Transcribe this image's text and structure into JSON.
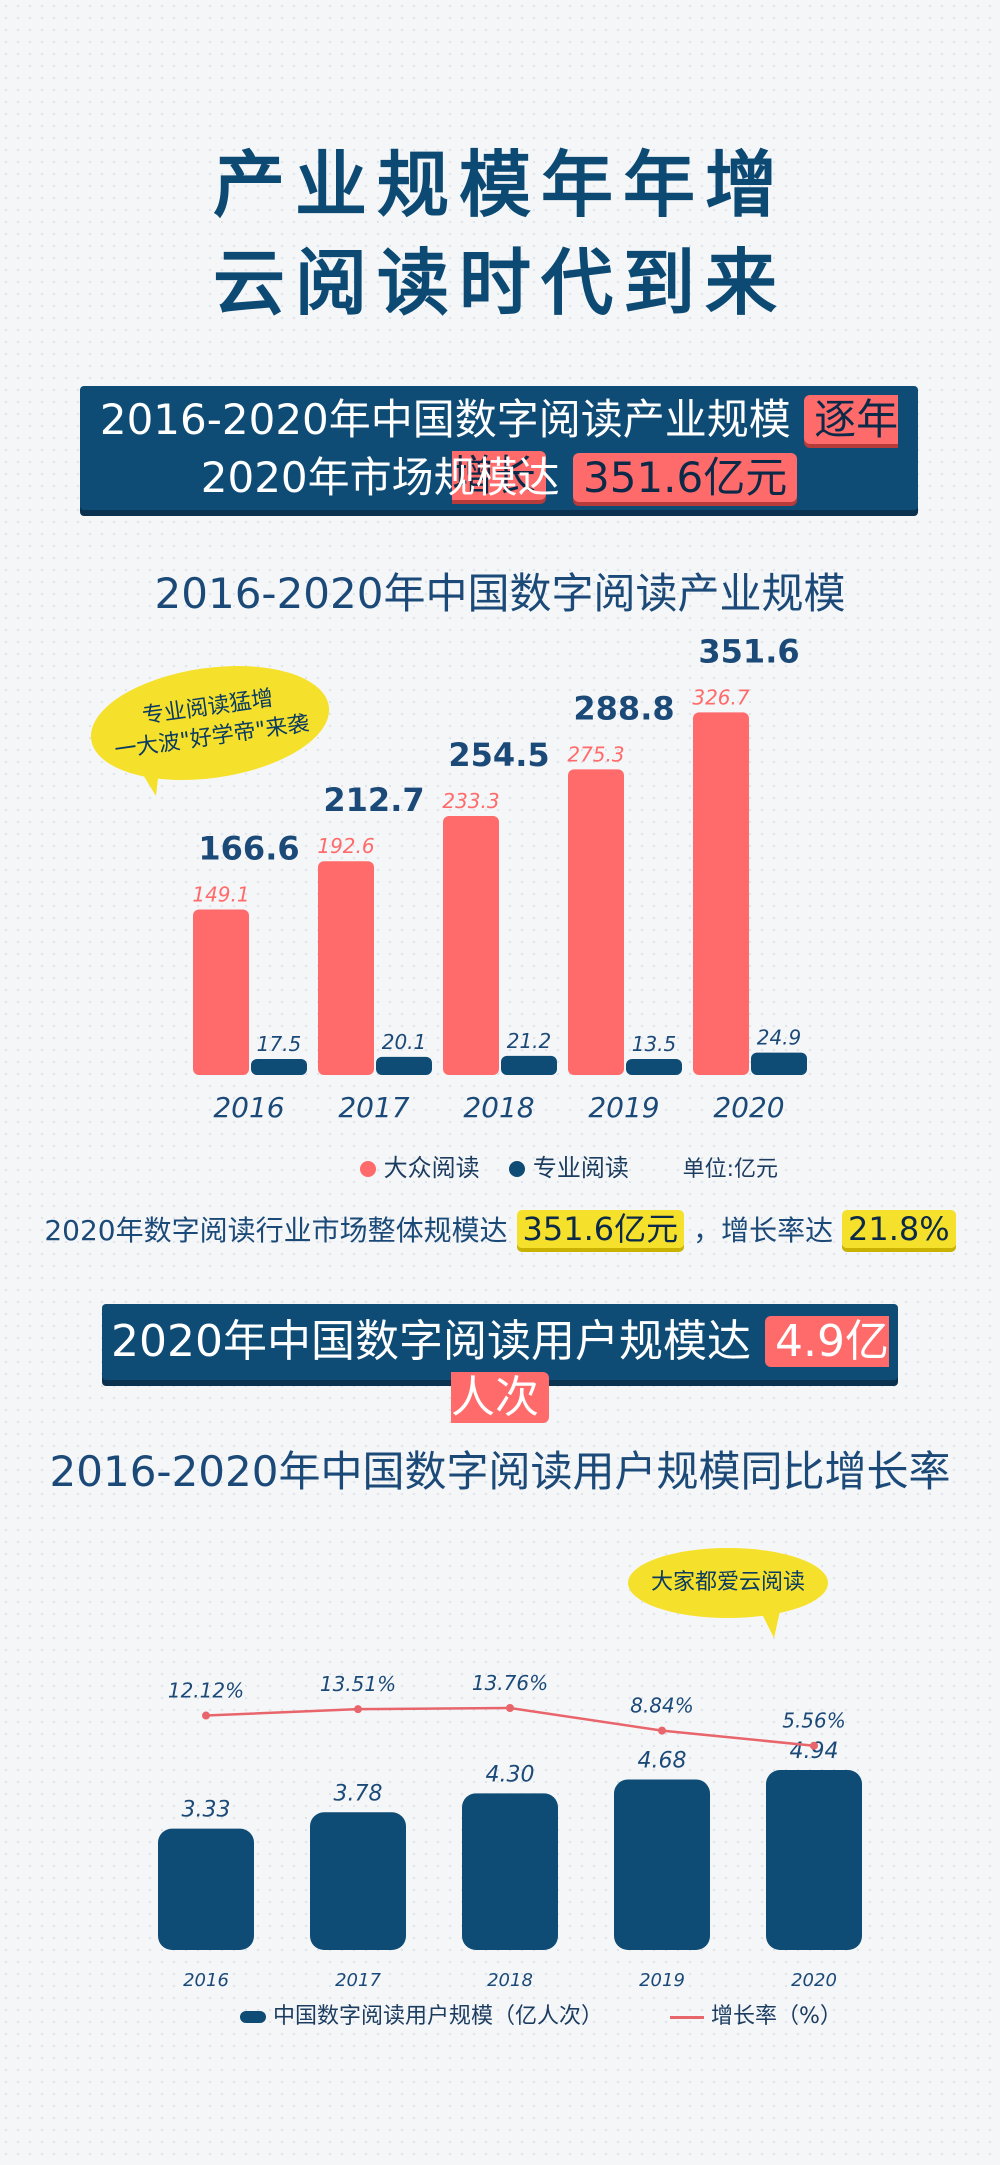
{
  "header": {
    "title_line1": "产业规模年年增",
    "title_line2": "云阅读时代到来"
  },
  "banner1": {
    "line1_prefix": "2016-2020年中国数字阅读产业规模",
    "line1_highlight": "逐年增长",
    "line2_prefix": "2020年市场规模达",
    "line2_highlight": "351.6亿元"
  },
  "chart1_title": "2016-2020年中国数字阅读产业规模",
  "bubble1": {
    "line1": "专业阅读猛增",
    "line2": "一大波\"好学帝\"来袭"
  },
  "legend1": {
    "series1": "大众阅读",
    "series2": "专业阅读",
    "unit": "单位:亿元"
  },
  "stat": {
    "prefix": "2020年数字阅读行业市场整体规模达",
    "value": "351.6亿元",
    "mid": "，增长率达",
    "rate": "21.8%"
  },
  "banner2": {
    "prefix": "2020年中国数字阅读用户规模达",
    "highlight": "4.9亿人次"
  },
  "chart2_title": "2016-2020年中国数字阅读用户规模同比增长率",
  "bubble2": {
    "text": "大家都爱云阅读"
  },
  "legend2": {
    "series1": "中国数字阅读用户规模（亿人次）",
    "series2": "增长率（%）"
  },
  "colors": {
    "navy": "#0f4c75",
    "coral": "#ff6b6b",
    "yellow": "#f5e12b"
  },
  "chart_data": [
    {
      "type": "bar",
      "title": "2016-2020年中国数字阅读产业规模",
      "categories": [
        "2016",
        "2017",
        "2018",
        "2019",
        "2020"
      ],
      "totals": [
        "166.6",
        "212.7",
        "254.5",
        "288.8",
        "351.6"
      ],
      "series": [
        {
          "name": "大众阅读",
          "values": [
            149.1,
            192.6,
            233.3,
            275.3,
            326.7
          ],
          "labels": [
            "149.1",
            "192.6",
            "233.3",
            "275.3",
            "326.7"
          ]
        },
        {
          "name": "专业阅读",
          "values": [
            17.5,
            20.1,
            21.2,
            13.5,
            24.9
          ],
          "labels": [
            "17.5",
            "20.1",
            "21.2",
            "13.5",
            "24.9"
          ]
        }
      ],
      "unit": "单位:亿元"
    },
    {
      "type": "bar",
      "title": "2016-2020年中国数字阅读用户规模同比增长率",
      "categories": [
        "2016",
        "2017",
        "2018",
        "2019",
        "2020"
      ],
      "series": [
        {
          "name": "中国数字阅读用户规模（亿人次）",
          "type": "bar",
          "values": [
            3.33,
            3.78,
            4.3,
            4.68,
            4.94
          ],
          "labels": [
            "3.33",
            "3.78",
            "4.30",
            "4.68",
            "4.94"
          ]
        },
        {
          "name": "增长率（%）",
          "type": "line",
          "values": [
            12.12,
            13.51,
            13.76,
            8.84,
            5.56
          ],
          "labels": [
            "12.12%",
            "13.51%",
            "13.76%",
            "8.84%",
            "5.56%"
          ]
        }
      ]
    }
  ]
}
